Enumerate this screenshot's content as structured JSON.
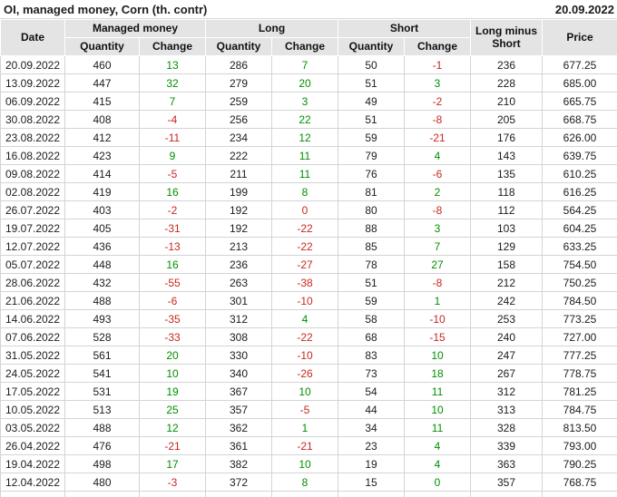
{
  "title": "OI, managed money, Corn (th. contr)",
  "report_date": "20.09.2022",
  "colors": {
    "positive_change": "#009000",
    "negative_change": "#c8281e",
    "header_background": "#e4e4e4",
    "grid_line": "#d4d4d4"
  },
  "table": {
    "headers": {
      "date": "Date",
      "managed_money": "Managed money",
      "long": "Long",
      "short": "Short",
      "long_minus_short": "Long minus Short",
      "price": "Price",
      "quantity": "Quantity",
      "change": "Change"
    },
    "columns": [
      {
        "key": "date",
        "name": "date"
      },
      {
        "key": "mm_qty",
        "name": "managed-money-quantity"
      },
      {
        "key": "mm_chg",
        "name": "managed-money-change",
        "color_key": "mm_chg_c"
      },
      {
        "key": "long_qty",
        "name": "long-quantity"
      },
      {
        "key": "long_chg",
        "name": "long-change",
        "color_key": "long_chg_c"
      },
      {
        "key": "short_qty",
        "name": "short-quantity"
      },
      {
        "key": "short_chg",
        "name": "short-change",
        "color_key": "short_chg_c"
      },
      {
        "key": "lms",
        "name": "long-minus-short"
      },
      {
        "key": "price",
        "name": "price"
      }
    ],
    "rows": [
      {
        "date": "20.09.2022",
        "mm_qty": "460",
        "mm_chg": "13",
        "mm_chg_c": "pos",
        "long_qty": "286",
        "long_chg": "7",
        "long_chg_c": "pos",
        "short_qty": "50",
        "short_chg": "-1",
        "short_chg_c": "neg",
        "lms": "236",
        "price": "677.25"
      },
      {
        "date": "13.09.2022",
        "mm_qty": "447",
        "mm_chg": "32",
        "mm_chg_c": "pos",
        "long_qty": "279",
        "long_chg": "20",
        "long_chg_c": "pos",
        "short_qty": "51",
        "short_chg": "3",
        "short_chg_c": "pos",
        "lms": "228",
        "price": "685.00"
      },
      {
        "date": "06.09.2022",
        "mm_qty": "415",
        "mm_chg": "7",
        "mm_chg_c": "pos",
        "long_qty": "259",
        "long_chg": "3",
        "long_chg_c": "pos",
        "short_qty": "49",
        "short_chg": "-2",
        "short_chg_c": "neg",
        "lms": "210",
        "price": "665.75"
      },
      {
        "date": "30.08.2022",
        "mm_qty": "408",
        "mm_chg": "-4",
        "mm_chg_c": "neg",
        "long_qty": "256",
        "long_chg": "22",
        "long_chg_c": "pos",
        "short_qty": "51",
        "short_chg": "-8",
        "short_chg_c": "neg",
        "lms": "205",
        "price": "668.75"
      },
      {
        "date": "23.08.2022",
        "mm_qty": "412",
        "mm_chg": "-11",
        "mm_chg_c": "neg",
        "long_qty": "234",
        "long_chg": "12",
        "long_chg_c": "pos",
        "short_qty": "59",
        "short_chg": "-21",
        "short_chg_c": "neg",
        "lms": "176",
        "price": "626.00"
      },
      {
        "date": "16.08.2022",
        "mm_qty": "423",
        "mm_chg": "9",
        "mm_chg_c": "pos",
        "long_qty": "222",
        "long_chg": "11",
        "long_chg_c": "pos",
        "short_qty": "79",
        "short_chg": "4",
        "short_chg_c": "pos",
        "lms": "143",
        "price": "639.75"
      },
      {
        "date": "09.08.2022",
        "mm_qty": "414",
        "mm_chg": "-5",
        "mm_chg_c": "neg",
        "long_qty": "211",
        "long_chg": "11",
        "long_chg_c": "pos",
        "short_qty": "76",
        "short_chg": "-6",
        "short_chg_c": "neg",
        "lms": "135",
        "price": "610.25"
      },
      {
        "date": "02.08.2022",
        "mm_qty": "419",
        "mm_chg": "16",
        "mm_chg_c": "pos",
        "long_qty": "199",
        "long_chg": "8",
        "long_chg_c": "pos",
        "short_qty": "81",
        "short_chg": "2",
        "short_chg_c": "pos",
        "lms": "118",
        "price": "616.25"
      },
      {
        "date": "26.07.2022",
        "mm_qty": "403",
        "mm_chg": "-2",
        "mm_chg_c": "neg",
        "long_qty": "192",
        "long_chg": "0",
        "long_chg_c": "neg",
        "short_qty": "80",
        "short_chg": "-8",
        "short_chg_c": "neg",
        "lms": "112",
        "price": "564.25"
      },
      {
        "date": "19.07.2022",
        "mm_qty": "405",
        "mm_chg": "-31",
        "mm_chg_c": "neg",
        "long_qty": "192",
        "long_chg": "-22",
        "long_chg_c": "neg",
        "short_qty": "88",
        "short_chg": "3",
        "short_chg_c": "pos",
        "lms": "103",
        "price": "604.25"
      },
      {
        "date": "12.07.2022",
        "mm_qty": "436",
        "mm_chg": "-13",
        "mm_chg_c": "neg",
        "long_qty": "213",
        "long_chg": "-22",
        "long_chg_c": "neg",
        "short_qty": "85",
        "short_chg": "7",
        "short_chg_c": "pos",
        "lms": "129",
        "price": "633.25"
      },
      {
        "date": "05.07.2022",
        "mm_qty": "448",
        "mm_chg": "16",
        "mm_chg_c": "pos",
        "long_qty": "236",
        "long_chg": "-27",
        "long_chg_c": "neg",
        "short_qty": "78",
        "short_chg": "27",
        "short_chg_c": "pos",
        "lms": "158",
        "price": "754.50"
      },
      {
        "date": "28.06.2022",
        "mm_qty": "432",
        "mm_chg": "-55",
        "mm_chg_c": "neg",
        "long_qty": "263",
        "long_chg": "-38",
        "long_chg_c": "neg",
        "short_qty": "51",
        "short_chg": "-8",
        "short_chg_c": "neg",
        "lms": "212",
        "price": "750.25"
      },
      {
        "date": "21.06.2022",
        "mm_qty": "488",
        "mm_chg": "-6",
        "mm_chg_c": "neg",
        "long_qty": "301",
        "long_chg": "-10",
        "long_chg_c": "neg",
        "short_qty": "59",
        "short_chg": "1",
        "short_chg_c": "pos",
        "lms": "242",
        "price": "784.50"
      },
      {
        "date": "14.06.2022",
        "mm_qty": "493",
        "mm_chg": "-35",
        "mm_chg_c": "neg",
        "long_qty": "312",
        "long_chg": "4",
        "long_chg_c": "pos",
        "short_qty": "58",
        "short_chg": "-10",
        "short_chg_c": "neg",
        "lms": "253",
        "price": "773.25"
      },
      {
        "date": "07.06.2022",
        "mm_qty": "528",
        "mm_chg": "-33",
        "mm_chg_c": "neg",
        "long_qty": "308",
        "long_chg": "-22",
        "long_chg_c": "neg",
        "short_qty": "68",
        "short_chg": "-15",
        "short_chg_c": "neg",
        "lms": "240",
        "price": "727.00"
      },
      {
        "date": "31.05.2022",
        "mm_qty": "561",
        "mm_chg": "20",
        "mm_chg_c": "pos",
        "long_qty": "330",
        "long_chg": "-10",
        "long_chg_c": "neg",
        "short_qty": "83",
        "short_chg": "10",
        "short_chg_c": "pos",
        "lms": "247",
        "price": "777.25"
      },
      {
        "date": "24.05.2022",
        "mm_qty": "541",
        "mm_chg": "10",
        "mm_chg_c": "pos",
        "long_qty": "340",
        "long_chg": "-26",
        "long_chg_c": "neg",
        "short_qty": "73",
        "short_chg": "18",
        "short_chg_c": "pos",
        "lms": "267",
        "price": "778.75"
      },
      {
        "date": "17.05.2022",
        "mm_qty": "531",
        "mm_chg": "19",
        "mm_chg_c": "pos",
        "long_qty": "367",
        "long_chg": "10",
        "long_chg_c": "pos",
        "short_qty": "54",
        "short_chg": "11",
        "short_chg_c": "pos",
        "lms": "312",
        "price": "781.25"
      },
      {
        "date": "10.05.2022",
        "mm_qty": "513",
        "mm_chg": "25",
        "mm_chg_c": "pos",
        "long_qty": "357",
        "long_chg": "-5",
        "long_chg_c": "neg",
        "short_qty": "44",
        "short_chg": "10",
        "short_chg_c": "pos",
        "lms": "313",
        "price": "784.75"
      },
      {
        "date": "03.05.2022",
        "mm_qty": "488",
        "mm_chg": "12",
        "mm_chg_c": "pos",
        "long_qty": "362",
        "long_chg": "1",
        "long_chg_c": "pos",
        "short_qty": "34",
        "short_chg": "11",
        "short_chg_c": "pos",
        "lms": "328",
        "price": "813.50"
      },
      {
        "date": "26.04.2022",
        "mm_qty": "476",
        "mm_chg": "-21",
        "mm_chg_c": "neg",
        "long_qty": "361",
        "long_chg": "-21",
        "long_chg_c": "neg",
        "short_qty": "23",
        "short_chg": "4",
        "short_chg_c": "pos",
        "lms": "339",
        "price": "793.00"
      },
      {
        "date": "19.04.2022",
        "mm_qty": "498",
        "mm_chg": "17",
        "mm_chg_c": "pos",
        "long_qty": "382",
        "long_chg": "10",
        "long_chg_c": "pos",
        "short_qty": "19",
        "short_chg": "4",
        "short_chg_c": "pos",
        "lms": "363",
        "price": "790.25"
      },
      {
        "date": "12.04.2022",
        "mm_qty": "480",
        "mm_chg": "-3",
        "mm_chg_c": "neg",
        "long_qty": "372",
        "long_chg": "8",
        "long_chg_c": "pos",
        "short_qty": "15",
        "short_chg": "0",
        "short_chg_c": "pos",
        "lms": "357",
        "price": "768.75"
      }
    ]
  }
}
